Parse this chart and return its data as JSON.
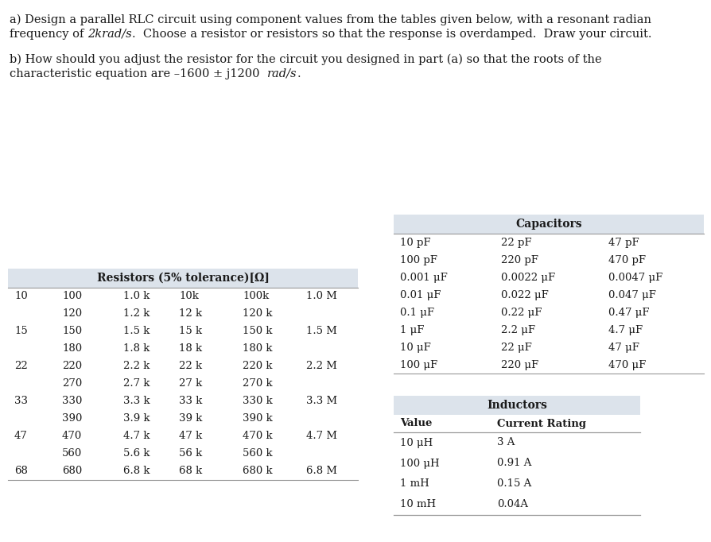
{
  "resistors_header": "Resistors (5% tolerance)[Ω]",
  "resistors_data": [
    [
      "10",
      "100",
      "1.0 k",
      "10k",
      "100k",
      "1.0 M"
    ],
    [
      "",
      "120",
      "1.2 k",
      "12 k",
      "120 k",
      ""
    ],
    [
      "15",
      "150",
      "1.5 k",
      "15 k",
      "150 k",
      "1.5 M"
    ],
    [
      "",
      "180",
      "1.8 k",
      "18 k",
      "180 k",
      ""
    ],
    [
      "22",
      "220",
      "2.2 k",
      "22 k",
      "220 k",
      "2.2 M"
    ],
    [
      "",
      "270",
      "2.7 k",
      "27 k",
      "270 k",
      ""
    ],
    [
      "33",
      "330",
      "3.3 k",
      "33 k",
      "330 k",
      "3.3 M"
    ],
    [
      "",
      "390",
      "3.9 k",
      "39 k",
      "390 k",
      ""
    ],
    [
      "47",
      "470",
      "4.7 k",
      "47 k",
      "470 k",
      "4.7 M"
    ],
    [
      "",
      "560",
      "5.6 k",
      "56 k",
      "560 k",
      ""
    ],
    [
      "68",
      "680",
      "6.8 k",
      "68 k",
      "680 k",
      "6.8 M"
    ]
  ],
  "capacitors_header": "Capacitors",
  "capacitors_data": [
    [
      "10 pF",
      "22 pF",
      "47 pF"
    ],
    [
      "100 pF",
      "220 pF",
      "470 pF"
    ],
    [
      "0.001 μF",
      "0.0022 μF",
      "0.0047 μF"
    ],
    [
      "0.01 μF",
      "0.022 μF",
      "0.047 μF"
    ],
    [
      "0.1 μF",
      "0.22 μF",
      "0.47 μF"
    ],
    [
      "1 μF",
      "2.2 μF",
      "4.7 μF"
    ],
    [
      "10 μF",
      "22 μF",
      "47 μF"
    ],
    [
      "100 μF",
      "220 μF",
      "470 μF"
    ]
  ],
  "inductors_header": "Inductors",
  "inductors_col_headers": [
    "Value",
    "Current Rating"
  ],
  "inductors_data": [
    [
      "10 μH",
      "3 A"
    ],
    [
      "100 μH",
      "0.91 A"
    ],
    [
      "1 mH",
      "0.15 A"
    ],
    [
      "10 mH",
      "0.04A"
    ]
  ],
  "bg_color": "#ffffff",
  "table_header_bg": "#dce3eb",
  "text_color": "#1a1a1a",
  "line_color": "#999999",
  "font_size_body": 10.5,
  "font_size_table": 9.5,
  "font_size_header": 10.0,
  "text_line1": "a) Design a parallel RLC circuit using component values from the tables given below, with a resonant radian",
  "text_line2_pre": "frequency of ",
  "text_line2_italic": "2krad/s",
  "text_line2_post": ".  Choose a resistor or resistors so that the response is overdamped.  Draw your circuit.",
  "text_line3": "b) How should you adjust the resistor for the circuit you designed in part (a) so that the roots of the",
  "text_line4_pre": "characteristic equation are –1600 ± j1200  ",
  "text_line4_italic": "rad/s",
  "text_line4_post": "."
}
